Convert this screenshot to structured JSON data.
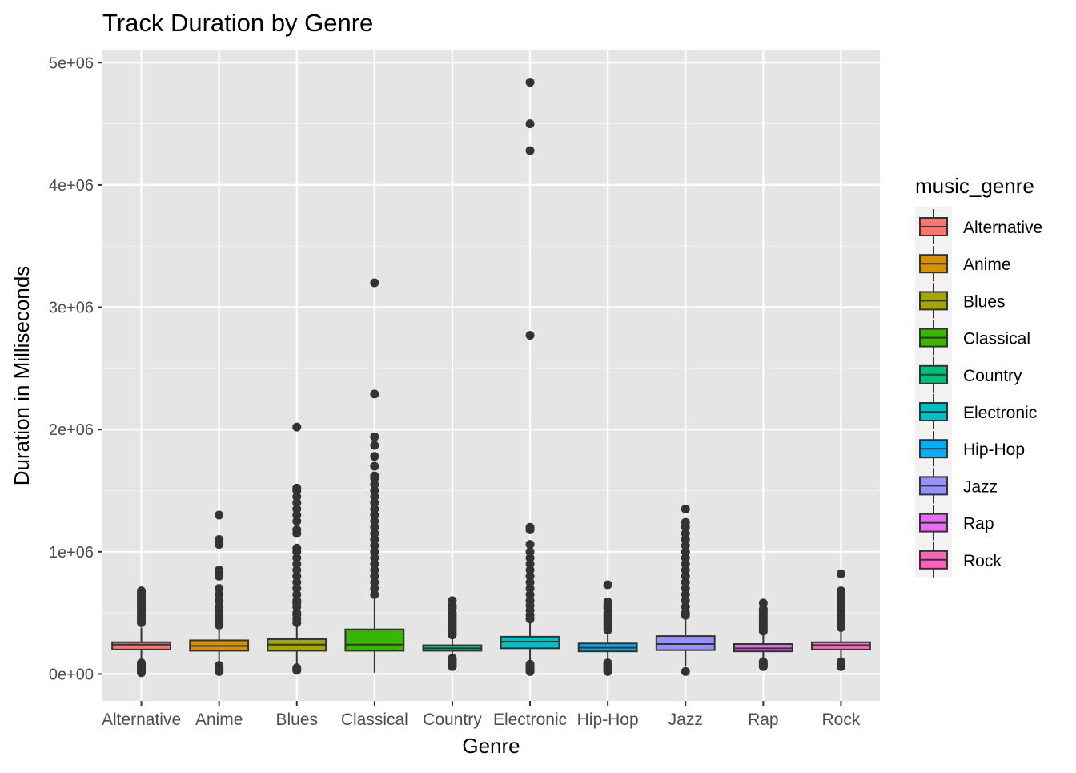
{
  "chart_data": {
    "type": "boxplot",
    "title": "Track Duration by Genre",
    "xlabel": "Genre",
    "ylabel": "Duration in Milliseconds",
    "ylim": [
      -220000,
      5100000
    ],
    "yticks": [
      {
        "value": 0,
        "label": "0e+00"
      },
      {
        "value": 1000000,
        "label": "1e+06"
      },
      {
        "value": 2000000,
        "label": "2e+06"
      },
      {
        "value": 3000000,
        "label": "3e+06"
      },
      {
        "value": 4000000,
        "label": "4e+06"
      },
      {
        "value": 5000000,
        "label": "5e+06"
      }
    ],
    "grid": true,
    "panel_background": "#e5e5e5",
    "legend": {
      "title": "music_genre",
      "position": "right"
    },
    "categories": [
      "Alternative",
      "Anime",
      "Blues",
      "Classical",
      "Country",
      "Electronic",
      "Hip-Hop",
      "Jazz",
      "Rap",
      "Rock"
    ],
    "series": [
      {
        "name": "Alternative",
        "color": "#F8766D",
        "q1": 200000,
        "median": 240000,
        "q3": 260000,
        "whisker_low": 100000,
        "whisker_high": 380000,
        "outliers_high": [
          420000,
          440000,
          460000,
          480000,
          500000,
          520000,
          540000,
          560000,
          580000,
          600000,
          620000,
          640000,
          660000,
          680000
        ],
        "outliers_low": [
          10000,
          20000,
          30000,
          40000,
          50000,
          60000,
          70000,
          80000,
          90000
        ]
      },
      {
        "name": "Anime",
        "color": "#D89000",
        "q1": 190000,
        "median": 230000,
        "q3": 275000,
        "whisker_low": 80000,
        "whisker_high": 380000,
        "outliers_high": [
          400000,
          420000,
          440000,
          460000,
          480000,
          520000,
          550000,
          600000,
          650000,
          700000,
          800000,
          830000,
          850000,
          1060000,
          1080000,
          1100000,
          1300000
        ],
        "outliers_low": [
          20000,
          30000,
          40000,
          50000,
          60000,
          70000
        ]
      },
      {
        "name": "Blues",
        "color": "#A3A500",
        "q1": 190000,
        "median": 240000,
        "q3": 285000,
        "whisker_low": 50000,
        "whisker_high": 400000,
        "outliers_high": [
          420000,
          450000,
          480000,
          500000,
          550000,
          580000,
          600000,
          650000,
          700000,
          750000,
          800000,
          850000,
          900000,
          950000,
          1000000,
          1030000,
          1150000,
          1180000,
          1250000,
          1300000,
          1350000,
          1400000,
          1450000,
          1500000,
          1520000,
          2020000
        ],
        "outliers_low": [
          30000,
          40000,
          50000
        ]
      },
      {
        "name": "Classical",
        "color": "#39B600",
        "q1": 190000,
        "median": 240000,
        "q3": 365000,
        "whisker_low": 10000,
        "whisker_high": 630000,
        "outliers_high": [
          650000,
          700000,
          750000,
          800000,
          850000,
          900000,
          950000,
          1000000,
          1050000,
          1100000,
          1150000,
          1200000,
          1250000,
          1300000,
          1350000,
          1400000,
          1450000,
          1500000,
          1550000,
          1600000,
          1620000,
          1700000,
          1780000,
          1870000,
          1940000,
          2290000,
          3200000
        ],
        "outliers_low": []
      },
      {
        "name": "Country",
        "color": "#00BF7D",
        "q1": 190000,
        "median": 210000,
        "q3": 235000,
        "whisker_low": 140000,
        "whisker_high": 300000,
        "outliers_high": [
          320000,
          340000,
          360000,
          380000,
          400000,
          420000,
          440000,
          460000,
          480000,
          500000,
          540000,
          560000,
          600000
        ],
        "outliers_low": [
          60000,
          70000,
          80000,
          90000,
          100000,
          110000,
          120000,
          130000
        ]
      },
      {
        "name": "Electronic",
        "color": "#00BFC4",
        "q1": 210000,
        "median": 265000,
        "q3": 305000,
        "whisker_low": 100000,
        "whisker_high": 430000,
        "outliers_high": [
          450000,
          480000,
          520000,
          560000,
          600000,
          650000,
          700000,
          750000,
          800000,
          850000,
          900000,
          950000,
          1000000,
          1060000,
          1180000,
          1200000,
          2770000,
          4280000,
          4500000,
          4840000
        ],
        "outliers_low": [
          20000,
          30000,
          40000,
          50000,
          60000,
          70000,
          80000
        ]
      },
      {
        "name": "Hip-Hop",
        "color": "#00B0F6",
        "q1": 185000,
        "median": 215000,
        "q3": 250000,
        "whisker_low": 100000,
        "whisker_high": 340000,
        "outliers_high": [
          360000,
          380000,
          400000,
          420000,
          440000,
          460000,
          480000,
          500000,
          540000,
          560000,
          590000,
          730000
        ],
        "outliers_low": [
          20000,
          30000,
          40000,
          50000,
          60000,
          70000,
          80000,
          90000
        ]
      },
      {
        "name": "Jazz",
        "color": "#9590FF",
        "q1": 195000,
        "median": 245000,
        "q3": 310000,
        "whisker_low": 60000,
        "whisker_high": 470000,
        "outliers_high": [
          480000,
          500000,
          550000,
          600000,
          650000,
          700000,
          750000,
          800000,
          850000,
          900000,
          950000,
          1000000,
          1050000,
          1100000,
          1150000,
          1200000,
          1240000,
          1350000
        ],
        "outliers_low": [
          20000
        ]
      },
      {
        "name": "Rap",
        "color": "#E76BF3",
        "q1": 185000,
        "median": 210000,
        "q3": 245000,
        "whisker_low": 110000,
        "whisker_high": 330000,
        "outliers_high": [
          350000,
          370000,
          390000,
          410000,
          430000,
          450000,
          470000,
          490000,
          510000,
          530000,
          580000
        ],
        "outliers_low": [
          60000,
          70000,
          80000,
          90000,
          100000
        ]
      },
      {
        "name": "Rock",
        "color": "#FF62BC",
        "q1": 200000,
        "median": 235000,
        "q3": 260000,
        "whisker_low": 110000,
        "whisker_high": 360000,
        "outliers_high": [
          380000,
          400000,
          420000,
          440000,
          460000,
          480000,
          500000,
          520000,
          540000,
          560000,
          580000,
          600000,
          640000,
          660000,
          680000,
          820000
        ],
        "outliers_low": [
          60000,
          70000,
          80000,
          90000,
          100000
        ]
      }
    ]
  }
}
